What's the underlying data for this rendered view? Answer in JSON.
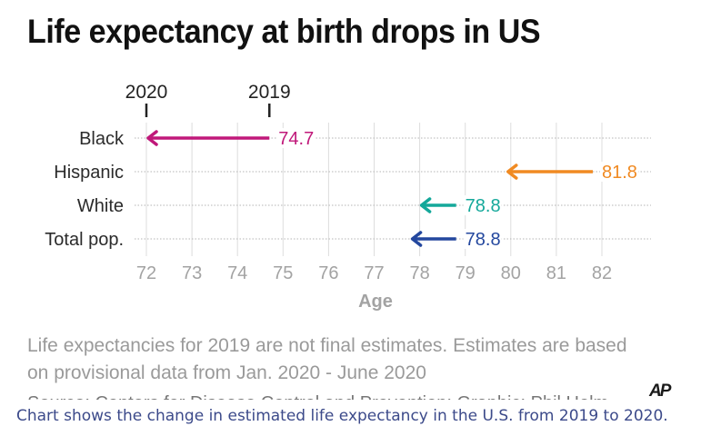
{
  "title": "Life expectancy at birth drops in US",
  "note_lines": [
    "Life expectancies for 2019 are not final estimates. Estimates are based",
    "on provisional data from Jan. 2020 - June 2020"
  ],
  "source": "Source: Centers for Disease Control and Prevention; Graphic: Phil Holm",
  "logo": "AP",
  "caption": "Chart shows the change in estimated life expectancy in the U.S. from 2019 to 2020.",
  "chart_data": {
    "type": "arrow-dot",
    "title": "Life expectancy at birth drops in US",
    "xlabel": "Age",
    "ylabel": "",
    "xlim": [
      72,
      82
    ],
    "xticks": [
      "72",
      "73",
      "74",
      "75",
      "76",
      "77",
      "78",
      "79",
      "80",
      "81",
      "82"
    ],
    "year_markers": [
      {
        "label": "2020",
        "value": 72.0
      },
      {
        "label": "2019",
        "value": 74.7
      }
    ],
    "series": [
      {
        "name": "Black",
        "from_2019": 74.7,
        "to_2020": 72.0,
        "label": "74.7",
        "color": "#c0187a"
      },
      {
        "name": "Hispanic",
        "from_2019": 81.8,
        "to_2020": 79.9,
        "label": "81.8",
        "color": "#f08a22"
      },
      {
        "name": "White",
        "from_2019": 78.8,
        "to_2020": 78.0,
        "label": "78.8",
        "color": "#14a89a"
      },
      {
        "name": "Total pop.",
        "from_2019": 78.8,
        "to_2020": 77.8,
        "label": "78.8",
        "color": "#23479e"
      }
    ]
  }
}
